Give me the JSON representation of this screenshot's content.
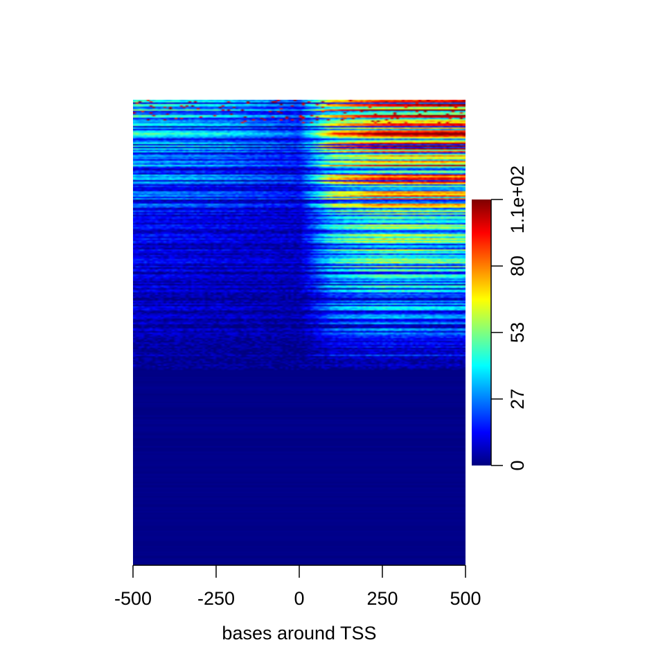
{
  "chart_data": {
    "type": "heatmap",
    "title": "",
    "xlabel": "bases around TSS",
    "ylabel": "",
    "x_range": [
      -500,
      500
    ],
    "x_ticks": [
      -500,
      -250,
      0,
      250,
      500
    ],
    "x_tick_labels": [
      "-500",
      "-250",
      "0",
      "250",
      "500"
    ],
    "colorbar": {
      "range": [
        0,
        107
      ],
      "ticks": [
        0,
        26.75,
        53.5,
        80.25,
        107
      ],
      "tick_labels": [
        "0",
        "27",
        "53",
        "80",
        "1.1e+02"
      ],
      "colormap": [
        "#00007F",
        "#0000FF",
        "#007FFF",
        "#00FFFF",
        "#7FFF7F",
        "#FFFF00",
        "#FF7F00",
        "#FF0000",
        "#7F0000"
      ]
    },
    "signal_profile": {
      "x": [
        -500,
        -250,
        0,
        100,
        250,
        500
      ],
      "top_rows": [
        35,
        30,
        18,
        55,
        70,
        75
      ],
      "middle_rows": [
        10,
        8,
        6,
        30,
        40,
        35
      ],
      "lower_rows": [
        5,
        4,
        3,
        12,
        14,
        12
      ],
      "bottom_rows": [
        1,
        1,
        1,
        1,
        1,
        1
      ]
    }
  }
}
